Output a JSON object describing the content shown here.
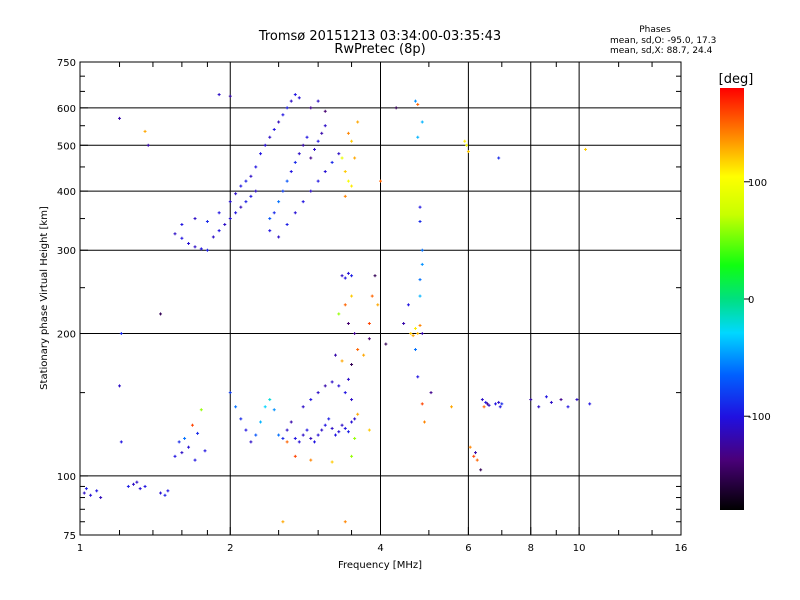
{
  "chart_data": {
    "type": "scatter",
    "title": "Tromsø 20151213 03:34:00-03:35:43",
    "subtitle": "RwPretec (8p)",
    "info": {
      "heading": "Phases",
      "line1": "mean, sd,O: -95.0, 17.3",
      "line2": "mean, sd,X:  88.7, 24.4"
    },
    "xlabel": "Frequency [MHz]",
    "ylabel": "Stationary phase Virtual Height [km]",
    "x_scale": "log",
    "y_scale": "log",
    "xlim": [
      1,
      16
    ],
    "ylim": [
      75,
      750
    ],
    "x_ticks": [
      1,
      2,
      4,
      6,
      8,
      10,
      16
    ],
    "x_tick_labels": [
      "1",
      "2",
      "4",
      "6",
      "8",
      "10",
      "16"
    ],
    "x_gridlines": [
      2,
      4,
      6,
      8,
      10
    ],
    "y_ticks": [
      75,
      100,
      200,
      300,
      400,
      500,
      600,
      750
    ],
    "y_tick_labels": [
      "75",
      "100",
      "200",
      "300",
      "400",
      "500",
      "600",
      "750"
    ],
    "y_gridlines": [
      100,
      200,
      300,
      400,
      500,
      600
    ],
    "grid": true,
    "colorbar": {
      "label": "[deg]",
      "range": [
        -180,
        180
      ],
      "ticks": [
        100,
        0,
        -100
      ],
      "tick_labels": [
        "100",
        "0",
        "-100"
      ]
    },
    "series": [
      {
        "points": [
          [
            1.02,
            92,
            -110
          ],
          [
            1.05,
            91,
            -105
          ],
          [
            1.08,
            93,
            -100
          ],
          [
            1.1,
            90,
            -115
          ],
          [
            1.03,
            94,
            -95
          ],
          [
            1.2,
            570,
            -120
          ],
          [
            1.21,
            200,
            -90
          ],
          [
            1.2,
            155,
            -110
          ],
          [
            1.21,
            118,
            -100
          ],
          [
            1.25,
            95,
            -95
          ],
          [
            1.28,
            96,
            -110
          ],
          [
            1.32,
            94,
            -105
          ],
          [
            1.35,
            95,
            -100
          ],
          [
            1.3,
            97,
            -110
          ],
          [
            1.35,
            535,
            130
          ],
          [
            1.37,
            500,
            -120
          ],
          [
            1.45,
            220,
            -150
          ],
          [
            1.45,
            92,
            -105
          ],
          [
            1.5,
            93,
            -100
          ],
          [
            1.48,
            91,
            -95
          ],
          [
            1.55,
            110,
            -100
          ],
          [
            1.6,
            112,
            -110
          ],
          [
            1.65,
            115,
            -105
          ],
          [
            1.58,
            118,
            -90
          ],
          [
            1.7,
            108,
            -100
          ],
          [
            1.62,
            120,
            -60
          ],
          [
            1.68,
            128,
            160
          ],
          [
            1.75,
            138,
            60
          ],
          [
            1.78,
            113,
            -100
          ],
          [
            1.72,
            123,
            -90
          ],
          [
            1.55,
            325,
            -110
          ],
          [
            1.6,
            318,
            -100
          ],
          [
            1.65,
            310,
            -105
          ],
          [
            1.7,
            305,
            -110
          ],
          [
            1.75,
            302,
            -100
          ],
          [
            1.8,
            300,
            -95
          ],
          [
            1.85,
            320,
            -110
          ],
          [
            1.9,
            330,
            -100
          ],
          [
            1.95,
            340,
            -110
          ],
          [
            2.0,
            350,
            -105
          ],
          [
            2.05,
            360,
            -100
          ],
          [
            2.1,
            370,
            -115
          ],
          [
            2.15,
            380,
            -95
          ],
          [
            2.2,
            390,
            -100
          ],
          [
            2.25,
            400,
            -110
          ],
          [
            1.6,
            340,
            -100
          ],
          [
            1.7,
            350,
            -110
          ],
          [
            1.8,
            345,
            -90
          ],
          [
            1.9,
            360,
            -100
          ],
          [
            2.0,
            380,
            -105
          ],
          [
            2.05,
            395,
            -110
          ],
          [
            2.1,
            410,
            -100
          ],
          [
            2.15,
            420,
            -95
          ],
          [
            2.2,
            430,
            -110
          ],
          [
            2.25,
            450,
            -100
          ],
          [
            1.9,
            640,
            -110
          ],
          [
            2.0,
            635,
            -120
          ],
          [
            2.3,
            480,
            -100
          ],
          [
            2.35,
            500,
            -105
          ],
          [
            2.4,
            520,
            -110
          ],
          [
            2.45,
            540,
            -100
          ],
          [
            2.5,
            560,
            -115
          ],
          [
            2.55,
            580,
            -100
          ],
          [
            2.6,
            600,
            -95
          ],
          [
            2.65,
            620,
            -110
          ],
          [
            2.7,
            640,
            -100
          ],
          [
            2.75,
            630,
            -105
          ],
          [
            2.4,
            350,
            -70
          ],
          [
            2.45,
            360,
            -90
          ],
          [
            2.5,
            380,
            -60
          ],
          [
            2.55,
            400,
            -80
          ],
          [
            2.6,
            420,
            -70
          ],
          [
            2.65,
            440,
            -100
          ],
          [
            2.7,
            460,
            -90
          ],
          [
            2.75,
            480,
            -110
          ],
          [
            2.8,
            500,
            -120
          ],
          [
            2.85,
            520,
            -100
          ],
          [
            2.9,
            470,
            -130
          ],
          [
            2.95,
            490,
            -110
          ],
          [
            3.0,
            510,
            -100
          ],
          [
            3.05,
            530,
            -120
          ],
          [
            3.1,
            550,
            -110
          ],
          [
            2.9,
            600,
            -130
          ],
          [
            3.0,
            620,
            -110
          ],
          [
            3.1,
            590,
            -140
          ],
          [
            2.4,
            330,
            -100
          ],
          [
            2.5,
            320,
            -110
          ],
          [
            2.6,
            340,
            -95
          ],
          [
            2.7,
            360,
            -105
          ],
          [
            2.8,
            380,
            -100
          ],
          [
            2.9,
            400,
            -110
          ],
          [
            3.0,
            420,
            -100
          ],
          [
            3.1,
            440,
            -105
          ],
          [
            3.2,
            460,
            -90
          ],
          [
            3.3,
            480,
            -110
          ],
          [
            3.35,
            470,
            90
          ],
          [
            3.4,
            440,
            120
          ],
          [
            3.45,
            420,
            100
          ],
          [
            3.5,
            410,
            110
          ],
          [
            3.4,
            390,
            140
          ],
          [
            3.55,
            470,
            130
          ],
          [
            3.5,
            510,
            120
          ],
          [
            3.45,
            530,
            140
          ],
          [
            3.6,
            560,
            130
          ],
          [
            3.35,
            265,
            -110
          ],
          [
            3.4,
            262,
            -100
          ],
          [
            3.45,
            268,
            -105
          ],
          [
            3.5,
            265,
            -95
          ],
          [
            3.3,
            220,
            60
          ],
          [
            3.4,
            230,
            150
          ],
          [
            3.5,
            240,
            120
          ],
          [
            3.45,
            210,
            -140
          ],
          [
            3.55,
            200,
            -130
          ],
          [
            3.6,
            185,
            150
          ],
          [
            3.25,
            180,
            -120
          ],
          [
            3.35,
            175,
            130
          ],
          [
            3.5,
            172,
            -150
          ],
          [
            3.45,
            160,
            -110
          ],
          [
            2.0,
            150,
            -80
          ],
          [
            2.05,
            140,
            -60
          ],
          [
            2.1,
            132,
            -90
          ],
          [
            2.15,
            125,
            -100
          ],
          [
            2.2,
            118,
            -110
          ],
          [
            2.25,
            122,
            -70
          ],
          [
            2.3,
            130,
            -40
          ],
          [
            2.35,
            140,
            -30
          ],
          [
            2.4,
            145,
            -20
          ],
          [
            2.45,
            138,
            -50
          ],
          [
            2.5,
            122,
            -60
          ],
          [
            2.55,
            120,
            -90
          ],
          [
            2.6,
            125,
            -110
          ],
          [
            2.65,
            130,
            -120
          ],
          [
            2.7,
            120,
            -100
          ],
          [
            2.75,
            118,
            -105
          ],
          [
            2.8,
            122,
            -110
          ],
          [
            2.85,
            125,
            -100
          ],
          [
            2.9,
            120,
            -115
          ],
          [
            2.95,
            118,
            -100
          ],
          [
            3.0,
            122,
            -105
          ],
          [
            3.05,
            125,
            -110
          ],
          [
            3.1,
            128,
            -100
          ],
          [
            3.15,
            132,
            -95
          ],
          [
            3.2,
            126,
            -110
          ],
          [
            3.25,
            122,
            -100
          ],
          [
            3.3,
            124,
            -105
          ],
          [
            3.35,
            128,
            -110
          ],
          [
            3.4,
            126,
            -100
          ],
          [
            3.45,
            124,
            -95
          ],
          [
            3.5,
            130,
            -105
          ],
          [
            3.55,
            132,
            -110
          ],
          [
            2.8,
            140,
            -110
          ],
          [
            2.9,
            145,
            -100
          ],
          [
            3.0,
            150,
            -110
          ],
          [
            3.1,
            155,
            -120
          ],
          [
            3.2,
            158,
            -110
          ],
          [
            3.3,
            155,
            -105
          ],
          [
            3.4,
            150,
            -100
          ],
          [
            3.5,
            145,
            -110
          ],
          [
            2.6,
            118,
            150
          ],
          [
            2.7,
            110,
            160
          ],
          [
            2.9,
            108,
            140
          ],
          [
            3.2,
            107,
            120
          ],
          [
            3.5,
            110,
            60
          ],
          [
            3.4,
            80,
            140
          ],
          [
            2.55,
            80,
            130
          ],
          [
            3.55,
            120,
            60
          ],
          [
            3.6,
            135,
            130
          ],
          [
            3.8,
            210,
            160
          ],
          [
            3.85,
            240,
            150
          ],
          [
            3.9,
            265,
            -150
          ],
          [
            3.95,
            230,
            130
          ],
          [
            3.8,
            195,
            -140
          ],
          [
            3.7,
            180,
            130
          ],
          [
            3.8,
            125,
            120
          ],
          [
            4.0,
            420,
            150
          ],
          [
            4.1,
            190,
            -150
          ],
          [
            4.3,
            600,
            -150
          ],
          [
            4.45,
            210,
            -120
          ],
          [
            4.55,
            230,
            -100
          ],
          [
            4.6,
            200,
            120
          ],
          [
            4.65,
            198,
            130
          ],
          [
            4.7,
            205,
            110
          ],
          [
            4.75,
            200,
            125
          ],
          [
            4.8,
            208,
            140
          ],
          [
            4.7,
            620,
            -50
          ],
          [
            4.75,
            610,
            150
          ],
          [
            4.85,
            560,
            -40
          ],
          [
            4.75,
            520,
            -40
          ],
          [
            4.8,
            370,
            -100
          ],
          [
            4.8,
            345,
            -90
          ],
          [
            4.85,
            300,
            -60
          ],
          [
            4.85,
            280,
            -50
          ],
          [
            4.8,
            260,
            -60
          ],
          [
            4.8,
            240,
            -40
          ],
          [
            4.85,
            200,
            -120
          ],
          [
            4.7,
            185,
            -60
          ],
          [
            4.75,
            162,
            -100
          ],
          [
            4.85,
            142,
            160
          ],
          [
            4.9,
            130,
            140
          ],
          [
            5.05,
            150,
            -130
          ],
          [
            5.55,
            140,
            130
          ],
          [
            5.9,
            510,
            110
          ],
          [
            5.95,
            500,
            100
          ],
          [
            6.0,
            485,
            120
          ],
          [
            6.05,
            115,
            140
          ],
          [
            6.15,
            110,
            160
          ],
          [
            6.2,
            112,
            -120
          ],
          [
            6.25,
            108,
            150
          ],
          [
            6.35,
            103,
            -150
          ],
          [
            6.4,
            145,
            -110
          ],
          [
            6.45,
            140,
            150
          ],
          [
            6.5,
            143,
            -100
          ],
          [
            6.55,
            142,
            -130
          ],
          [
            6.6,
            141,
            -110
          ],
          [
            6.8,
            142,
            -100
          ],
          [
            6.9,
            143,
            -110
          ],
          [
            6.95,
            140,
            -100
          ],
          [
            7.0,
            142,
            -90
          ],
          [
            6.9,
            470,
            -90
          ],
          [
            8.0,
            145,
            -120
          ],
          [
            8.3,
            140,
            -110
          ],
          [
            8.6,
            147,
            -100
          ],
          [
            8.8,
            143,
            -110
          ],
          [
            9.2,
            145,
            -130
          ],
          [
            9.5,
            140,
            -100
          ],
          [
            9.9,
            145,
            -110
          ],
          [
            10.3,
            490,
            120
          ],
          [
            10.5,
            142,
            -100
          ]
        ]
      }
    ]
  }
}
